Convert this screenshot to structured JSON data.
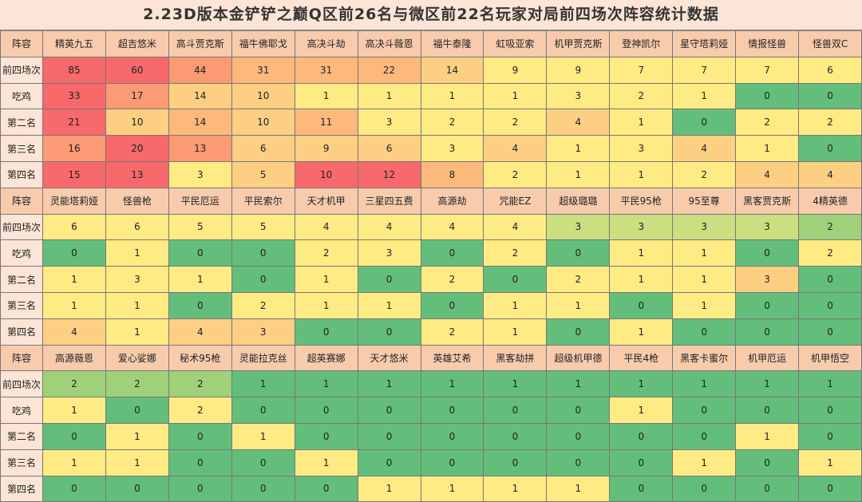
{
  "title": "2.23D版本金铲铲之巅Q区前26名与微区前22名玩家对局前四场次阵容统计数据",
  "row_labels": [
    "前四场次",
    "吃鸡",
    "第二名",
    "第三名",
    "第四名"
  ],
  "header_label": "阵容",
  "colors": {
    "red": "#f8696b",
    "orange_red": "#fb9a74",
    "orange": "#fdb97c",
    "light_orange": "#fccf83",
    "yellow": "#ffeb84",
    "light_green": "#c9df80",
    "mid_green": "#9fd17a",
    "green": "#63be7b"
  },
  "blocks": [
    {
      "lineups": [
        "精英九五",
        "超吉悠米",
        "高斗贾克斯",
        "福牛佛耶戈",
        "高决斗劫",
        "高决斗薇恩",
        "福牛泰隆",
        "虹吸亚索",
        "机甲贾克斯",
        "登神凯尔",
        "星守塔莉娅",
        "情报怪兽",
        "怪兽双C"
      ],
      "rows": [
        [
          "85",
          "60",
          "44",
          "31",
          "31",
          "22",
          "14",
          "9",
          "9",
          "7",
          "7",
          "7",
          "6"
        ],
        [
          "33",
          "17",
          "14",
          "10",
          "1",
          "1",
          "1",
          "1",
          "3",
          "2",
          "1",
          "0",
          "0"
        ],
        [
          "21",
          "10",
          "14",
          "10",
          "11",
          "3",
          "2",
          "2",
          "4",
          "1",
          "0",
          "2",
          "2"
        ],
        [
          "16",
          "20",
          "13",
          "6",
          "9",
          "6",
          "3",
          "4",
          "1",
          "3",
          "4",
          "1",
          "0"
        ],
        [
          "15",
          "13",
          "3",
          "5",
          "10",
          "12",
          "8",
          "2",
          "1",
          "1",
          "2",
          "4",
          "4"
        ]
      ],
      "fills": [
        [
          "red",
          "red",
          "orange_red",
          "orange",
          "orange",
          "orange",
          "light_orange",
          "yellow",
          "yellow",
          "yellow",
          "yellow",
          "yellow",
          "yellow"
        ],
        [
          "red",
          "orange_red",
          "light_orange",
          "light_orange",
          "yellow",
          "yellow",
          "yellow",
          "yellow",
          "yellow",
          "yellow",
          "yellow",
          "green",
          "green"
        ],
        [
          "red",
          "light_orange",
          "orange",
          "light_orange",
          "orange",
          "yellow",
          "yellow",
          "yellow",
          "light_orange",
          "yellow",
          "green",
          "yellow",
          "yellow"
        ],
        [
          "orange_red",
          "red",
          "orange_red",
          "light_orange",
          "light_orange",
          "light_orange",
          "yellow",
          "light_orange",
          "yellow",
          "yellow",
          "light_orange",
          "yellow",
          "green"
        ],
        [
          "red",
          "red",
          "yellow",
          "light_orange",
          "red",
          "red",
          "orange",
          "yellow",
          "yellow",
          "yellow",
          "yellow",
          "light_orange",
          "light_orange"
        ]
      ]
    },
    {
      "lineups": [
        "灵能塔莉娅",
        "怪兽枪",
        "平民厄运",
        "平民索尔",
        "天才机甲",
        "三星四五费",
        "高源劫",
        "咒能EZ",
        "超级璐璐",
        "平民95枪",
        "95至尊",
        "黑客贾克斯",
        "4精英德"
      ],
      "rows": [
        [
          "6",
          "6",
          "5",
          "5",
          "4",
          "4",
          "4",
          "4",
          "3",
          "3",
          "3",
          "3",
          "2"
        ],
        [
          "0",
          "1",
          "0",
          "0",
          "2",
          "3",
          "0",
          "2",
          "0",
          "1",
          "1",
          "0",
          "2"
        ],
        [
          "1",
          "3",
          "1",
          "0",
          "1",
          "0",
          "2",
          "0",
          "2",
          "1",
          "1",
          "3",
          "0"
        ],
        [
          "1",
          "1",
          "0",
          "2",
          "1",
          "1",
          "0",
          "1",
          "1",
          "0",
          "1",
          "0",
          "0"
        ],
        [
          "4",
          "1",
          "4",
          "3",
          "0",
          "0",
          "2",
          "1",
          "0",
          "1",
          "0",
          "0",
          "0"
        ]
      ],
      "fills": [
        [
          "yellow",
          "yellow",
          "yellow",
          "yellow",
          "yellow",
          "yellow",
          "yellow",
          "yellow",
          "light_green",
          "light_green",
          "light_green",
          "light_green",
          "mid_green"
        ],
        [
          "green",
          "yellow",
          "green",
          "green",
          "yellow",
          "yellow",
          "green",
          "yellow",
          "green",
          "yellow",
          "yellow",
          "green",
          "yellow"
        ],
        [
          "yellow",
          "yellow",
          "yellow",
          "green",
          "yellow",
          "green",
          "yellow",
          "green",
          "yellow",
          "yellow",
          "yellow",
          "light_orange",
          "green"
        ],
        [
          "yellow",
          "yellow",
          "green",
          "yellow",
          "yellow",
          "yellow",
          "green",
          "yellow",
          "yellow",
          "green",
          "yellow",
          "green",
          "green"
        ],
        [
          "light_orange",
          "yellow",
          "light_orange",
          "light_orange",
          "green",
          "green",
          "yellow",
          "yellow",
          "green",
          "yellow",
          "green",
          "green",
          "green"
        ]
      ]
    },
    {
      "lineups": [
        "高源薇恩",
        "爱心娑娜",
        "秘术95枪",
        "灵能拉克丝",
        "超英赛娜",
        "天才悠米",
        "英雄艾希",
        "黑客劫拼",
        "超级机甲德",
        "平民4枪",
        "黑客卡蜜尔",
        "机甲厄运",
        "机甲悟空"
      ],
      "rows": [
        [
          "2",
          "2",
          "2",
          "1",
          "1",
          "1",
          "1",
          "1",
          "1",
          "1",
          "1",
          "1",
          "1"
        ],
        [
          "1",
          "0",
          "2",
          "0",
          "0",
          "0",
          "0",
          "0",
          "0",
          "1",
          "0",
          "0",
          "0"
        ],
        [
          "0",
          "1",
          "0",
          "1",
          "0",
          "0",
          "0",
          "0",
          "0",
          "0",
          "0",
          "1",
          "0"
        ],
        [
          "1",
          "1",
          "0",
          "0",
          "1",
          "0",
          "0",
          "0",
          "0",
          "0",
          "1",
          "0",
          "1"
        ],
        [
          "0",
          "0",
          "0",
          "0",
          "0",
          "1",
          "1",
          "1",
          "1",
          "0",
          "0",
          "0",
          "0"
        ]
      ],
      "fills": [
        [
          "mid_green",
          "mid_green",
          "mid_green",
          "green",
          "green",
          "green",
          "green",
          "green",
          "green",
          "green",
          "green",
          "green",
          "green"
        ],
        [
          "yellow",
          "green",
          "yellow",
          "green",
          "green",
          "green",
          "green",
          "green",
          "green",
          "yellow",
          "green",
          "green",
          "green"
        ],
        [
          "green",
          "yellow",
          "green",
          "yellow",
          "green",
          "green",
          "green",
          "green",
          "green",
          "green",
          "green",
          "yellow",
          "green"
        ],
        [
          "yellow",
          "yellow",
          "green",
          "green",
          "yellow",
          "green",
          "green",
          "green",
          "green",
          "green",
          "yellow",
          "green",
          "yellow"
        ],
        [
          "green",
          "green",
          "green",
          "green",
          "green",
          "yellow",
          "yellow",
          "yellow",
          "yellow",
          "green",
          "green",
          "green",
          "green"
        ]
      ]
    }
  ]
}
